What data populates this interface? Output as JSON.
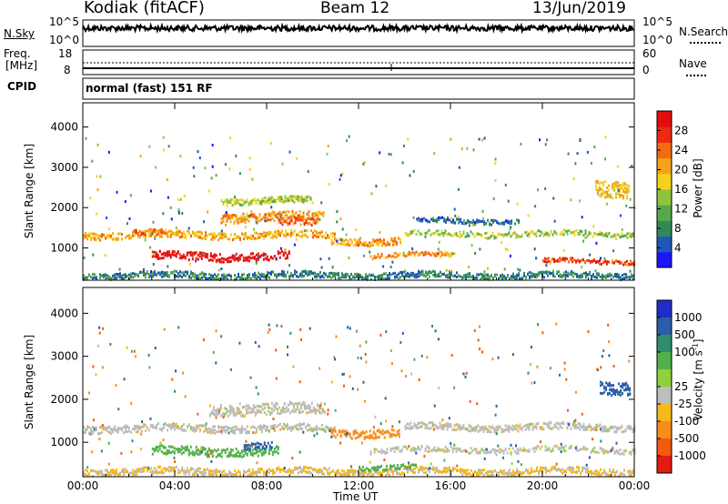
{
  "header": {
    "station": "Kodiak (fitACF)",
    "beam": "Beam 12",
    "date": "13/Jun/2019"
  },
  "aux": {
    "nsky_label": "N.Sky",
    "nsky_ticks": [
      "10^5",
      "10^0"
    ],
    "nsearch_label": "N.Search",
    "nsearch_ticks": [
      "10^5",
      "10^0"
    ],
    "freq_label_1": "Freq.",
    "freq_label_2": "[MHz]",
    "freq_ticks": [
      "18",
      "8"
    ],
    "nave_label": "Nave",
    "nave_ticks": [
      "60",
      "0"
    ],
    "cpid_label": "CPID",
    "cpid_value": "normal (fast) 151 RF"
  },
  "colors": {
    "power_scale": [
      "#1b14ff",
      "#1f58b8",
      "#2f8a5a",
      "#56a84c",
      "#8ec43c",
      "#f4d21a",
      "#f6a21a",
      "#f46a12",
      "#ec2a10",
      "#e40d0d"
    ],
    "velocity_scale": [
      "#1f2ec8",
      "#2a5ea8",
      "#2e8e6e",
      "#52b04a",
      "#8fd03c",
      "#bdbdbd",
      "#f6b81a",
      "#f78d1a",
      "#f25a10",
      "#e21a10"
    ],
    "ground_scatter": "#bdbdbd"
  },
  "chart_data": [
    {
      "type": "heatmap",
      "panel": "power",
      "xlabel": "",
      "ylabel": "Slant Range [km]",
      "x_ticks": [
        "00:00",
        "04:00",
        "08:00",
        "12:00",
        "16:00",
        "20:00",
        "00:00"
      ],
      "y_ticks": [
        1000,
        2000,
        3000,
        4000
      ],
      "ylim": [
        200,
        4600
      ],
      "xlim_hours": [
        0,
        24
      ],
      "colorbar_label": "Power [dB]",
      "colorbar_ticks": [
        4,
        8,
        12,
        16,
        20,
        24,
        28
      ],
      "colorbar_range": [
        0,
        32
      ],
      "features": [
        {
          "start_h": 0.0,
          "end_h": 11.0,
          "range_km": 1350,
          "thickness_km": 170,
          "value": 20
        },
        {
          "start_h": 2.2,
          "end_h": 3.6,
          "range_km": 1400,
          "thickness_km": 140,
          "value": 25
        },
        {
          "start_h": 6.0,
          "end_h": 10.5,
          "range_km": 1800,
          "thickness_km": 220,
          "value": 22
        },
        {
          "start_h": 8.5,
          "end_h": 10.2,
          "range_km": 1650,
          "thickness_km": 200,
          "value": 24
        },
        {
          "start_h": 3.0,
          "end_h": 9.0,
          "range_km": 820,
          "thickness_km": 200,
          "value": 31
        },
        {
          "start_h": 11.8,
          "end_h": 13.8,
          "range_km": 1200,
          "thickness_km": 170,
          "value": 22
        },
        {
          "start_h": 10.8,
          "end_h": 12.0,
          "range_km": 1200,
          "thickness_km": 150,
          "value": 19
        },
        {
          "start_h": 12.5,
          "end_h": 16.0,
          "range_km": 850,
          "thickness_km": 110,
          "value": 22
        },
        {
          "start_h": 14.0,
          "end_h": 24.0,
          "range_km": 1380,
          "thickness_km": 140,
          "value": 14
        },
        {
          "start_h": 20.0,
          "end_h": 24.0,
          "range_km": 700,
          "thickness_km": 110,
          "value": 26
        },
        {
          "start_h": 0.0,
          "end_h": 24.0,
          "range_km": 350,
          "thickness_km": 150,
          "value": 8
        },
        {
          "start_h": 22.3,
          "end_h": 23.8,
          "range_km": 2500,
          "thickness_km": 400,
          "value": 18
        },
        {
          "start_h": 6.0,
          "end_h": 10.0,
          "range_km": 2200,
          "thickness_km": 160,
          "value": 15
        },
        {
          "start_h": 14.5,
          "end_h": 19.0,
          "range_km": 1700,
          "thickness_km": 120,
          "value": 6
        }
      ]
    },
    {
      "type": "heatmap",
      "panel": "velocity",
      "xlabel": "Time UT",
      "ylabel": "Slant Range [km]",
      "x_ticks": [
        "00:00",
        "04:00",
        "08:00",
        "12:00",
        "16:00",
        "20:00",
        "00:00"
      ],
      "y_ticks": [
        1000,
        2000,
        3000,
        4000
      ],
      "ylim": [
        200,
        4600
      ],
      "xlim_hours": [
        0,
        24
      ],
      "colorbar_label": "Velocity [m s",
      "colorbar_label_sup": "-1",
      "colorbar_label_end": "]",
      "colorbar_ticks": [
        "1000",
        "500",
        "100",
        "25",
        "-25",
        "-100",
        "-500",
        "-1000"
      ],
      "features": [
        {
          "start_h": 0.0,
          "end_h": 11.0,
          "range_km": 1350,
          "thickness_km": 170,
          "value": 0
        },
        {
          "start_h": 5.5,
          "end_h": 10.5,
          "range_km": 1800,
          "thickness_km": 260,
          "value": 0
        },
        {
          "start_h": 3.0,
          "end_h": 8.5,
          "range_km": 820,
          "thickness_km": 200,
          "value": 90
        },
        {
          "start_h": 7.0,
          "end_h": 8.2,
          "range_km": 950,
          "thickness_km": 150,
          "value": 400
        },
        {
          "start_h": 10.8,
          "end_h": 13.8,
          "range_km": 1250,
          "thickness_km": 200,
          "value": -250
        },
        {
          "start_h": 12.5,
          "end_h": 24.0,
          "range_km": 850,
          "thickness_km": 130,
          "value": 0
        },
        {
          "start_h": 14.0,
          "end_h": 24.0,
          "range_km": 1380,
          "thickness_km": 150,
          "value": 0
        },
        {
          "start_h": 0.0,
          "end_h": 24.0,
          "range_km": 350,
          "thickness_km": 150,
          "value": -30
        },
        {
          "start_h": 12.0,
          "end_h": 14.5,
          "range_km": 450,
          "thickness_km": 100,
          "value": 100
        },
        {
          "start_h": 22.5,
          "end_h": 23.8,
          "range_km": 2300,
          "thickness_km": 300,
          "value": 500
        }
      ]
    }
  ]
}
